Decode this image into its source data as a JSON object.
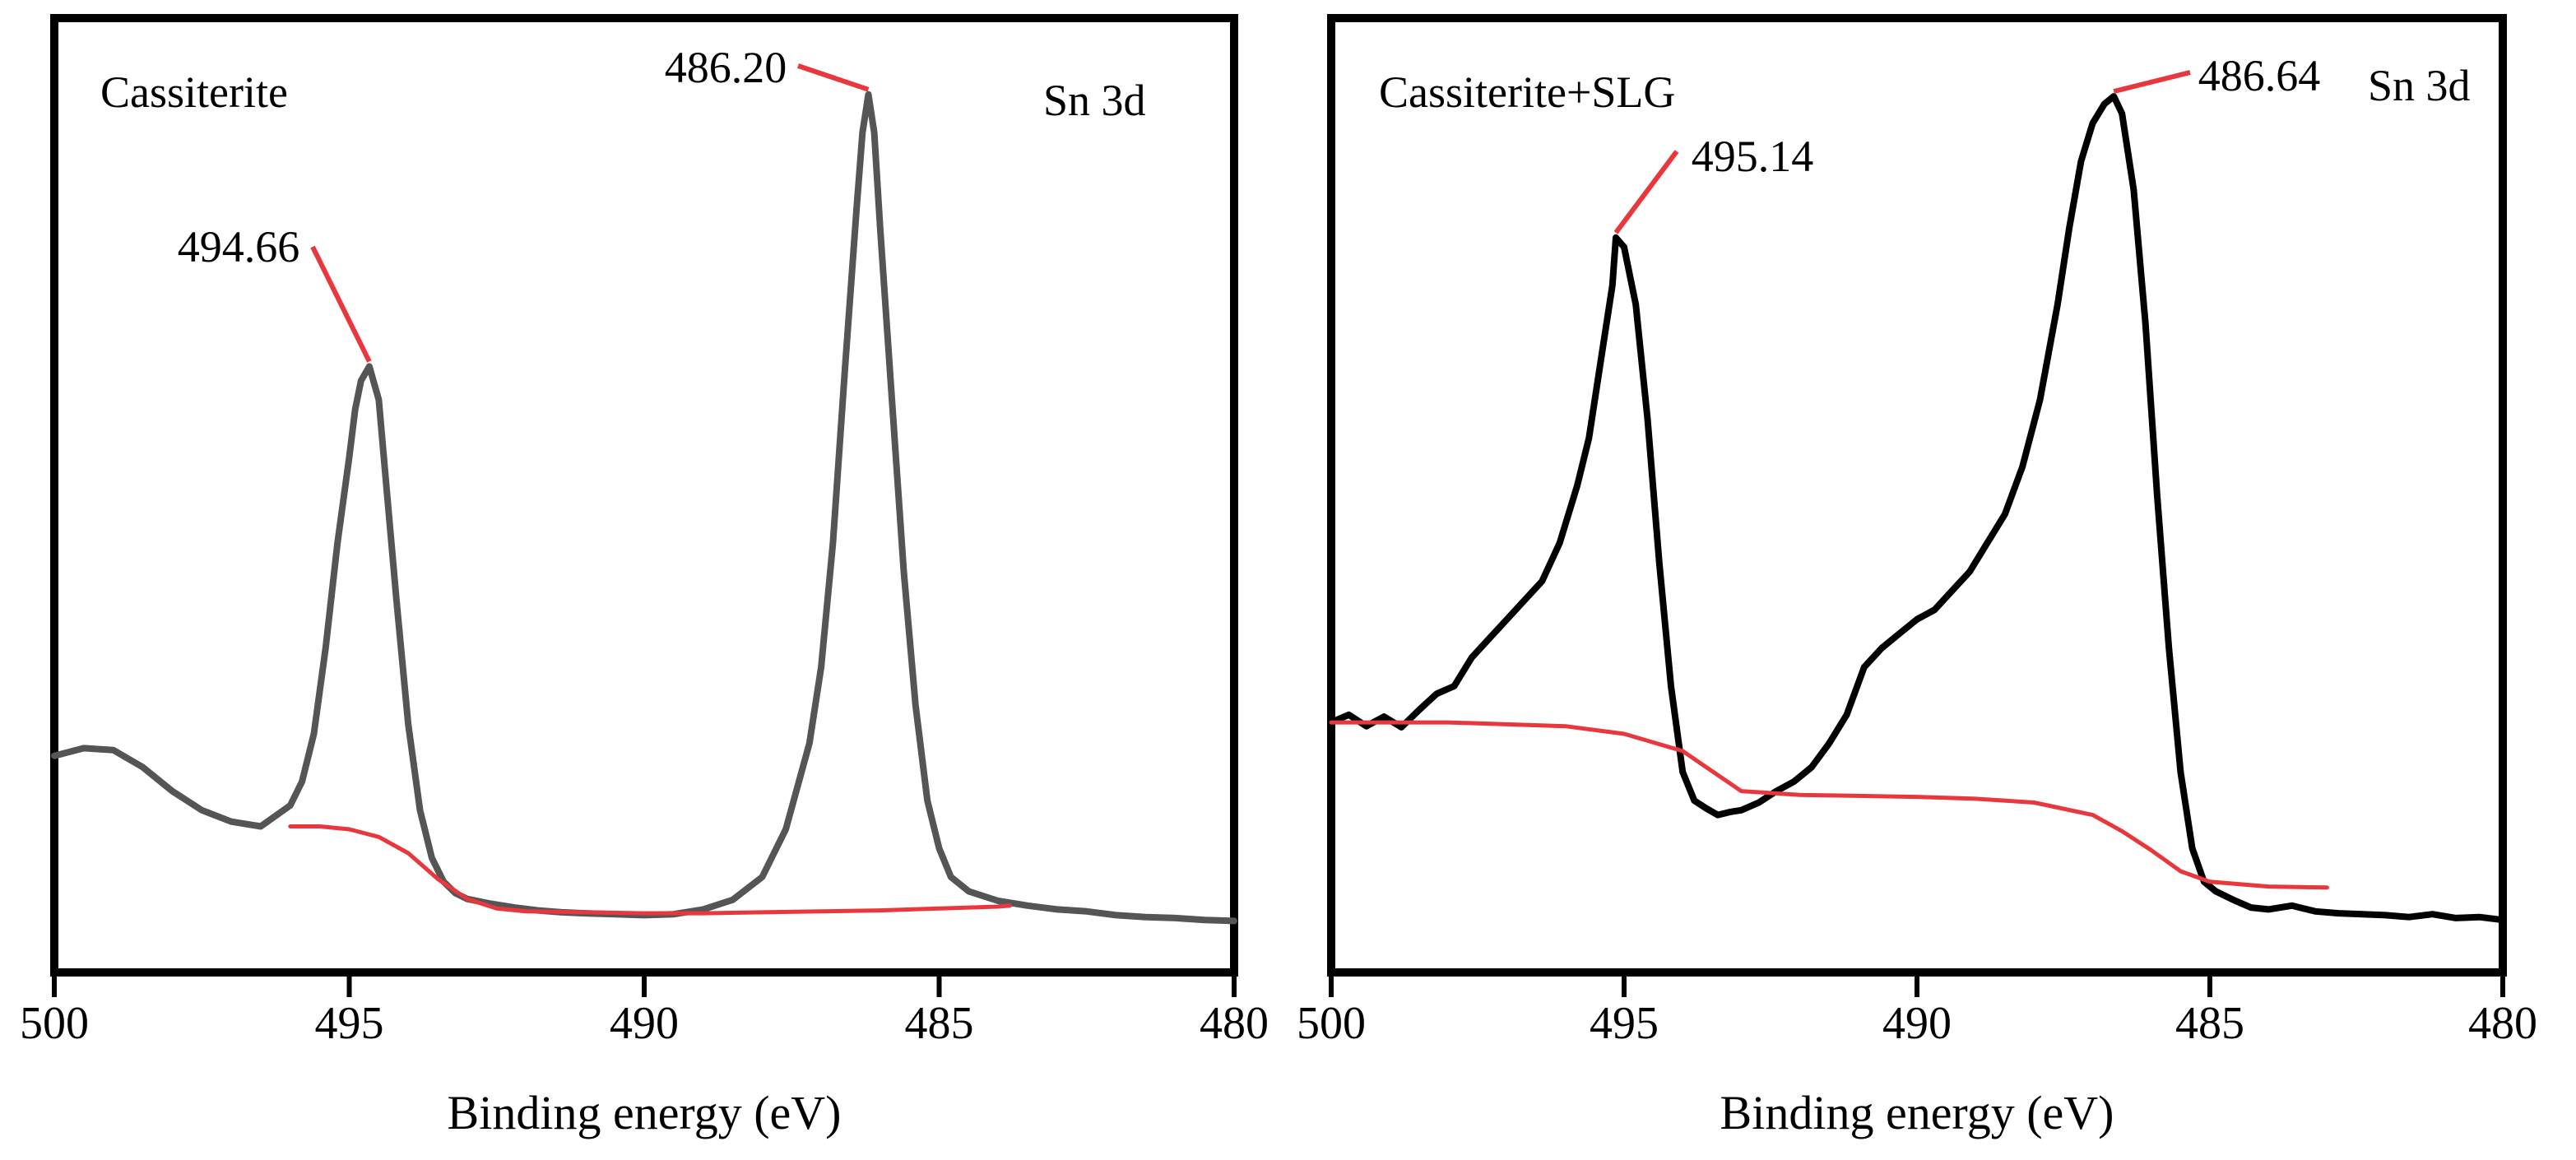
{
  "chart_data": [
    {
      "type": "line",
      "sample_label": "Cassiterite",
      "region_label": "Sn 3d",
      "xlabel": "Binding energy (eV)",
      "ylabel": "",
      "x_reversed": true,
      "xlim": [
        500,
        480
      ],
      "ylim": [
        0,
        1.0
      ],
      "xticks": [
        500,
        495,
        490,
        485,
        480
      ],
      "xtick_labels": [
        "500",
        "495",
        "490",
        "485",
        "480"
      ],
      "yticks_shown": false,
      "grid": false,
      "series": [
        {
          "name": "Sn 3d spectrum",
          "color": "#555555",
          "x": [
            500.0,
            499.5,
            499.0,
            498.5,
            498.0,
            497.5,
            497.0,
            496.5,
            496.0,
            495.8,
            495.6,
            495.4,
            495.2,
            495.0,
            494.9,
            494.8,
            494.66,
            494.5,
            494.4,
            494.2,
            494.0,
            493.8,
            493.6,
            493.4,
            493.2,
            493.0,
            492.6,
            492.2,
            491.8,
            491.4,
            491.0,
            490.5,
            490.0,
            489.5,
            489.0,
            488.5,
            488.0,
            487.6,
            487.2,
            487.0,
            486.8,
            486.6,
            486.4,
            486.3,
            486.2,
            486.1,
            486.0,
            485.8,
            485.6,
            485.4,
            485.2,
            485.0,
            484.8,
            484.5,
            484.0,
            483.5,
            483.0,
            482.5,
            482.0,
            481.5,
            481.0,
            480.5,
            480.0
          ],
          "values": [
            0.227,
            0.235,
            0.233,
            0.215,
            0.19,
            0.17,
            0.158,
            0.153,
            0.175,
            0.2,
            0.25,
            0.34,
            0.45,
            0.54,
            0.59,
            0.62,
            0.635,
            0.6,
            0.53,
            0.39,
            0.26,
            0.17,
            0.12,
            0.095,
            0.083,
            0.077,
            0.072,
            0.068,
            0.065,
            0.063,
            0.062,
            0.061,
            0.06,
            0.061,
            0.066,
            0.076,
            0.1,
            0.15,
            0.24,
            0.32,
            0.45,
            0.63,
            0.8,
            0.88,
            0.92,
            0.88,
            0.78,
            0.6,
            0.42,
            0.28,
            0.18,
            0.13,
            0.1,
            0.085,
            0.075,
            0.07,
            0.066,
            0.064,
            0.06,
            0.058,
            0.057,
            0.055,
            0.054
          ]
        },
        {
          "name": "Background",
          "color": "#e8383d",
          "x": [
            496.0,
            495.5,
            495.0,
            494.5,
            494.0,
            493.5,
            493.0,
            492.5,
            492.0,
            491.0,
            490.0,
            489.0,
            488.0,
            487.0,
            486.0,
            485.0,
            484.0,
            483.8
          ],
          "values": [
            0.153,
            0.153,
            0.15,
            0.142,
            0.125,
            0.098,
            0.077,
            0.067,
            0.064,
            0.063,
            0.062,
            0.062,
            0.063,
            0.064,
            0.065,
            0.067,
            0.069,
            0.07
          ]
        }
      ],
      "annotations": [
        {
          "text": "494.66",
          "x": 494.66,
          "y": 0.635
        },
        {
          "text": "486.20",
          "x": 486.2,
          "y": 0.92
        }
      ]
    },
    {
      "type": "line",
      "sample_label": "Cassiterite+SLG",
      "region_label": "Sn 3d",
      "xlabel": "Binding energy (eV)",
      "ylabel": "",
      "x_reversed": true,
      "xlim": [
        500,
        480
      ],
      "ylim": [
        0,
        1.0
      ],
      "xticks": [
        500,
        495,
        490,
        485,
        480
      ],
      "xtick_labels": [
        "500",
        "495",
        "490",
        "485",
        "480"
      ],
      "yticks_shown": false,
      "grid": false,
      "series": [
        {
          "name": "Sn 3d spectrum",
          "color": "#000000",
          "x": [
            500.0,
            499.7,
            499.4,
            499.1,
            498.8,
            498.5,
            498.2,
            497.9,
            497.6,
            497.3,
            497.0,
            496.7,
            496.4,
            496.1,
            495.8,
            495.6,
            495.4,
            495.2,
            495.14,
            495.0,
            494.8,
            494.6,
            494.4,
            494.2,
            494.0,
            493.8,
            493.6,
            493.4,
            493.2,
            493.0,
            492.7,
            492.4,
            492.1,
            491.8,
            491.5,
            491.2,
            490.9,
            490.6,
            490.3,
            490.0,
            489.7,
            489.4,
            489.1,
            488.8,
            488.5,
            488.2,
            487.9,
            487.6,
            487.4,
            487.2,
            487.0,
            486.8,
            486.64,
            486.5,
            486.3,
            486.1,
            485.9,
            485.7,
            485.5,
            485.3,
            485.1,
            484.9,
            484.6,
            484.3,
            484.0,
            483.6,
            483.2,
            482.8,
            482.4,
            482.0,
            481.6,
            481.2,
            480.8,
            480.4,
            480.0
          ],
          "values": [
            0.262,
            0.27,
            0.258,
            0.268,
            0.257,
            0.275,
            0.292,
            0.3,
            0.33,
            0.35,
            0.37,
            0.39,
            0.41,
            0.45,
            0.51,
            0.56,
            0.64,
            0.72,
            0.77,
            0.76,
            0.7,
            0.58,
            0.43,
            0.3,
            0.21,
            0.18,
            0.172,
            0.165,
            0.168,
            0.17,
            0.178,
            0.19,
            0.2,
            0.215,
            0.24,
            0.27,
            0.32,
            0.34,
            0.355,
            0.37,
            0.38,
            0.4,
            0.42,
            0.45,
            0.48,
            0.53,
            0.6,
            0.7,
            0.78,
            0.85,
            0.89,
            0.91,
            0.918,
            0.9,
            0.82,
            0.68,
            0.5,
            0.34,
            0.21,
            0.13,
            0.095,
            0.085,
            0.076,
            0.068,
            0.066,
            0.07,
            0.064,
            0.062,
            0.061,
            0.06,
            0.058,
            0.061,
            0.057,
            0.058,
            0.055
          ]
        },
        {
          "name": "Background",
          "color": "#e8383d",
          "x": [
            500.0,
            498.0,
            496.0,
            495.0,
            494.0,
            493.0,
            492.0,
            491.0,
            490.0,
            489.0,
            488.0,
            487.0,
            486.5,
            486.0,
            485.5,
            485.0,
            484.0,
            483.0
          ],
          "values": [
            0.262,
            0.262,
            0.258,
            0.25,
            0.232,
            0.19,
            0.186,
            0.185,
            0.184,
            0.182,
            0.178,
            0.165,
            0.148,
            0.128,
            0.106,
            0.095,
            0.09,
            0.089
          ]
        }
      ],
      "annotations": [
        {
          "text": "495.14",
          "x": 495.14,
          "y": 0.77
        },
        {
          "text": "486.64",
          "x": 486.64,
          "y": 0.918
        }
      ]
    }
  ]
}
